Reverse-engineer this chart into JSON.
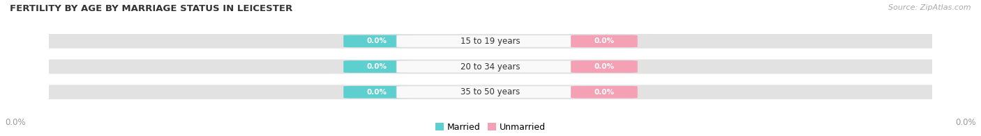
{
  "title": "FERTILITY BY AGE BY MARRIAGE STATUS IN LEICESTER",
  "source": "Source: ZipAtlas.com",
  "categories": [
    "15 to 19 years",
    "20 to 34 years",
    "35 to 50 years"
  ],
  "married_values": [
    0.0,
    0.0,
    0.0
  ],
  "unmarried_values": [
    0.0,
    0.0,
    0.0
  ],
  "married_color": "#5ecfcf",
  "unmarried_color": "#f4a0b5",
  "bar_bg_color": "#e2e2e2",
  "bar_bg_edge_color": "#ffffff",
  "label_color_married": "#ffffff",
  "label_color_unmarried": "#ffffff",
  "category_label_color": "#333333",
  "center_box_color": "#f9f9f9",
  "axis_label_color": "#999999",
  "title_color": "#333333",
  "source_color": "#aaaaaa",
  "background_color": "#ffffff",
  "figsize": [
    14.06,
    1.96
  ],
  "dpi": 100,
  "value_label": "0.0%",
  "x_axis_label_left": "0.0%",
  "x_axis_label_right": "0.0%"
}
